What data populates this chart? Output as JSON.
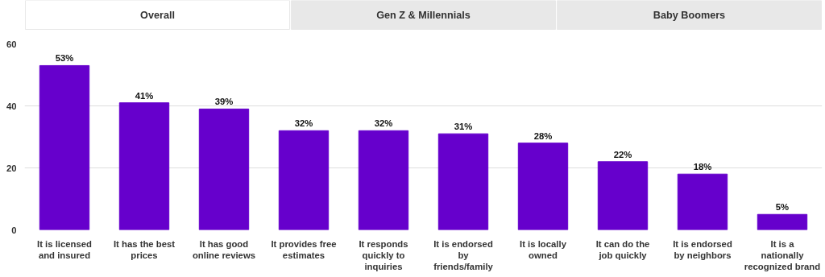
{
  "chart_data": {
    "type": "bar",
    "annotations": [
      "Overall",
      "Gen Z & Millennials",
      "Baby Boomers"
    ],
    "categories": [
      "It is licensed and insured",
      "It has the best prices",
      "It has good online reviews",
      "It provides free estimates",
      "It responds quickly to inquiries",
      "It is endorsed by friends/family",
      "It is locally owned",
      "It can do the job quickly",
      "It is endorsed by neighbors",
      "It is a nationally recognized brand"
    ],
    "values": [
      53,
      41,
      39,
      32,
      32,
      31,
      28,
      22,
      18,
      5
    ],
    "value_labels": [
      "53%",
      "41%",
      "39%",
      "32%",
      "32%",
      "31%",
      "28%",
      "22%",
      "18%",
      "5%"
    ],
    "color": "#6600cc",
    "ylim": [
      0,
      60
    ],
    "yticks": [
      0,
      20,
      40,
      60
    ],
    "grid": "y"
  }
}
